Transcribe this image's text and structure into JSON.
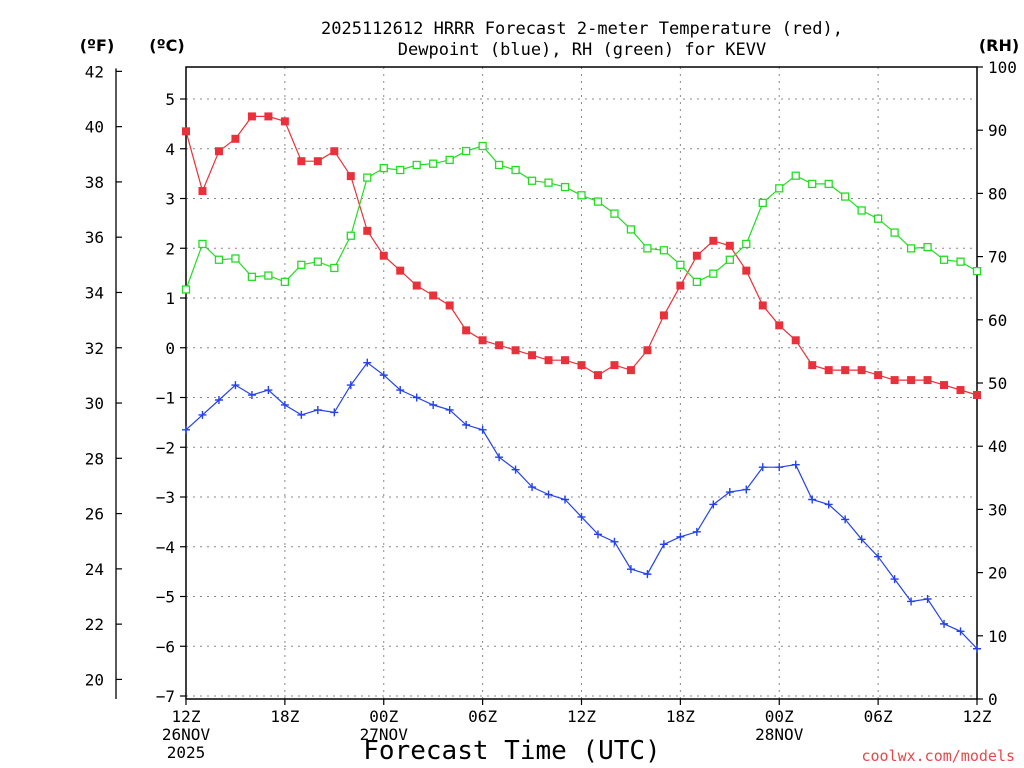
{
  "chart_data": {
    "type": "line",
    "title_lines": [
      "2025112612 HRRR Forecast 2-meter Temperature (red),",
      "Dewpoint (blue), RH (green) for KEVV"
    ],
    "xlabel": "Forecast Time (UTC)",
    "credit": "coolwx.com/models",
    "unit_labels": {
      "fahrenheit": "(ºF)",
      "celsius": "(ºC)",
      "rh": "(RH)"
    },
    "x_hours": [
      0,
      1,
      2,
      3,
      4,
      5,
      6,
      7,
      8,
      9,
      10,
      11,
      12,
      13,
      14,
      15,
      16,
      17,
      18,
      19,
      20,
      21,
      22,
      23,
      24,
      25,
      26,
      27,
      28,
      29,
      30,
      31,
      32,
      33,
      34,
      35,
      36,
      37,
      38,
      39,
      40,
      41,
      42,
      43,
      44,
      45,
      46,
      47,
      48
    ],
    "xlim": [
      0,
      48
    ],
    "x_ticks": [
      {
        "hour": 0,
        "lines": [
          "12Z",
          "26NOV",
          "2025"
        ]
      },
      {
        "hour": 6,
        "lines": [
          "18Z"
        ]
      },
      {
        "hour": 12,
        "lines": [
          "00Z",
          "27NOV"
        ]
      },
      {
        "hour": 18,
        "lines": [
          "06Z"
        ]
      },
      {
        "hour": 24,
        "lines": [
          "12Z"
        ]
      },
      {
        "hour": 30,
        "lines": [
          "18Z"
        ]
      },
      {
        "hour": 36,
        "lines": [
          "00Z",
          "28NOV"
        ]
      },
      {
        "hour": 42,
        "lines": [
          "06Z"
        ]
      },
      {
        "hour": 48,
        "lines": [
          "12Z"
        ]
      }
    ],
    "celsius_axis": {
      "range": [
        -7,
        5.5
      ],
      "ticks": [
        -7,
        -6,
        -5,
        -4,
        -3,
        -2,
        -1,
        0,
        1,
        2,
        3,
        4,
        5
      ],
      "labels": [
        "−7",
        "−6",
        "−5",
        "−4",
        "−3",
        "−2",
        "−1",
        "0",
        "1",
        "2",
        "3",
        "4",
        "5"
      ]
    },
    "fahrenheit_axis": {
      "ticks": [
        20,
        22,
        24,
        26,
        28,
        30,
        32,
        34,
        36,
        38,
        40,
        42
      ]
    },
    "rh_axis": {
      "range": [
        0,
        100
      ],
      "ticks": [
        0,
        10,
        20,
        30,
        40,
        50,
        60,
        70,
        80,
        90,
        100
      ]
    },
    "grid": true,
    "series": [
      {
        "name": "Temperature",
        "color": "#e8313a",
        "marker": "filled-square",
        "units": "°C",
        "values": [
          4.35,
          3.15,
          3.95,
          4.2,
          4.65,
          4.65,
          4.55,
          3.75,
          3.75,
          3.95,
          3.45,
          2.35,
          1.85,
          1.55,
          1.25,
          1.05,
          0.85,
          0.35,
          0.15,
          0.05,
          -0.05,
          -0.15,
          -0.25,
          -0.25,
          -0.35,
          -0.55,
          -0.35,
          -0.45,
          -0.05,
          0.65,
          1.25,
          1.85,
          2.15,
          2.05,
          1.55,
          0.85,
          0.45,
          0.15,
          -0.35,
          -0.45,
          -0.45,
          -0.45,
          -0.55,
          -0.65,
          -0.65,
          -0.65,
          -0.75,
          -0.85,
          -0.95
        ]
      },
      {
        "name": "Dewpoint",
        "color": "#2442e8",
        "marker": "plus",
        "units": "°C",
        "values": [
          -1.65,
          -1.35,
          -1.05,
          -0.75,
          -0.95,
          -0.85,
          -1.15,
          -1.35,
          -1.25,
          -1.3,
          -0.75,
          -0.3,
          -0.55,
          -0.85,
          -1.0,
          -1.15,
          -1.25,
          -1.55,
          -1.65,
          -2.2,
          -2.45,
          -2.8,
          -2.95,
          -3.05,
          -3.4,
          -3.75,
          -3.9,
          -4.45,
          -4.55,
          -3.95,
          -3.8,
          -3.7,
          -3.15,
          -2.9,
          -2.85,
          -2.4,
          -2.4,
          -2.35,
          -3.05,
          -3.15,
          -3.45,
          -3.85,
          -4.2,
          -4.65,
          -5.1,
          -5.05,
          -5.55,
          -5.7,
          -6.05
        ]
      },
      {
        "name": "RH",
        "color": "#22dd22",
        "marker": "open-square",
        "units": "%",
        "values": [
          64.8,
          72,
          69.5,
          69.7,
          66.8,
          67,
          66,
          68.7,
          69.2,
          68.2,
          73.3,
          82.5,
          84,
          83.7,
          84.5,
          84.7,
          85.3,
          86.7,
          87.5,
          84.5,
          83.7,
          82,
          81.7,
          81,
          79.7,
          78.7,
          76.8,
          74.3,
          71.3,
          71,
          68.7,
          66,
          67.3,
          69.5,
          72,
          78.5,
          80.8,
          82.8,
          81.5,
          81.5,
          79.5,
          77.3,
          76,
          73.8,
          71.3,
          71.5,
          69.5,
          69.2,
          67.7
        ]
      }
    ]
  }
}
